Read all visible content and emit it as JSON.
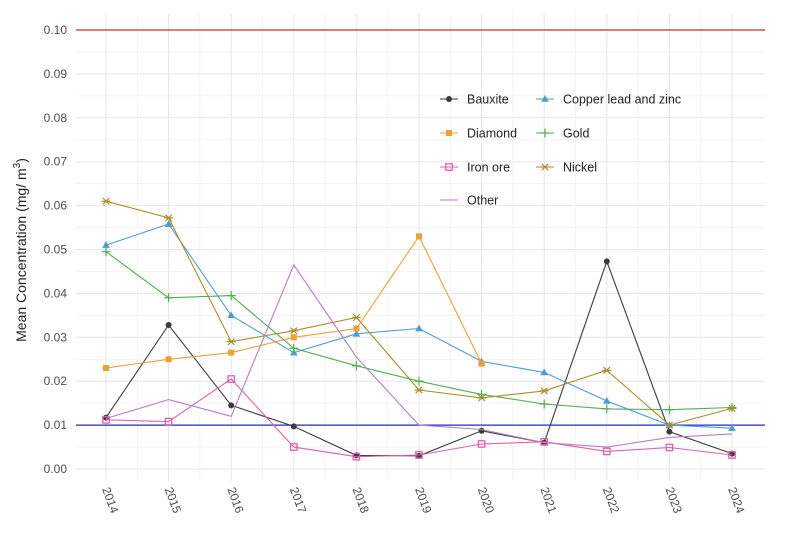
{
  "chart_data": {
    "type": "line",
    "title": "",
    "xlabel": "",
    "ylabel": "Mean Concentration (mg/ m",
    "ylabel_superscript": "3",
    "ylabel_close": ")",
    "x": [
      "2014",
      "2015",
      "2016",
      "2017",
      "2018",
      "2019",
      "2020",
      "2021",
      "2022",
      "2023",
      "2024"
    ],
    "ylim": [
      0.0,
      0.1
    ],
    "yticks": [
      "0.00",
      "0.01",
      "0.02",
      "0.03",
      "0.04",
      "0.05",
      "0.06",
      "0.07",
      "0.08",
      "0.09",
      "0.10"
    ],
    "grid": true,
    "legend_position": "top-right",
    "reference_lines": [
      {
        "value": 0.1,
        "color": "#cc2a2a"
      },
      {
        "value": 0.01,
        "color": "#1f2bd6"
      }
    ],
    "series": [
      {
        "name": "Bauxite",
        "color": "#3b3b3b",
        "marker": "circle",
        "values": [
          0.0117,
          0.0328,
          0.0145,
          0.0097,
          0.0031,
          0.003,
          0.0087,
          0.006,
          0.0473,
          0.0085,
          0.0035
        ]
      },
      {
        "name": "Copper lead and zinc",
        "color": "#4e9cd6",
        "marker": "triangle",
        "values": [
          0.051,
          0.0558,
          0.035,
          0.0265,
          0.0308,
          0.032,
          0.0245,
          0.022,
          0.0155,
          0.01,
          0.0093
        ]
      },
      {
        "name": "Diamond",
        "color": "#f0a030",
        "marker": "square",
        "values": [
          0.023,
          0.025,
          0.0265,
          0.03,
          0.032,
          0.053,
          0.024,
          null,
          null,
          null,
          null
        ]
      },
      {
        "name": "Gold",
        "color": "#4caf50",
        "marker": "plus",
        "values": [
          0.0495,
          0.039,
          0.0395,
          0.0275,
          0.0235,
          0.02,
          0.017,
          0.0148,
          0.0137,
          0.0135,
          0.014
        ]
      },
      {
        "name": "Iron ore",
        "color": "#e060a8",
        "marker": "square-open",
        "values": [
          0.0112,
          0.0108,
          0.0205,
          0.005,
          0.0028,
          0.0032,
          0.0057,
          0.0062,
          0.004,
          0.0049,
          0.0032
        ]
      },
      {
        "name": "Nickel",
        "color": "#a8902a",
        "marker": "asterisk",
        "values": [
          0.061,
          0.0572,
          0.029,
          0.0315,
          0.0345,
          0.018,
          0.0162,
          0.0178,
          0.0225,
          0.01,
          0.0138
        ]
      },
      {
        "name": "Other",
        "color": "#b77ec6",
        "marker": "none",
        "values": [
          0.0115,
          0.0158,
          0.012,
          0.0465,
          0.0255,
          0.01,
          0.009,
          0.006,
          0.005,
          0.0072,
          0.008
        ]
      }
    ]
  }
}
